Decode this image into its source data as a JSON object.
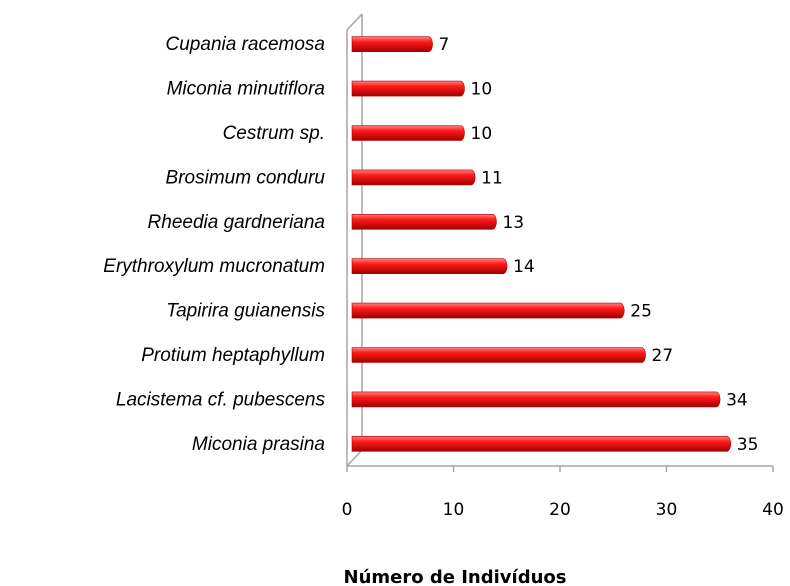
{
  "chart_data": {
    "type": "bar",
    "orientation": "horizontal",
    "x_label": "Número de Indivíduos",
    "categories": [
      "Cupania racemosa",
      "Miconia minutiflora",
      "Cestrum sp.",
      "Brosimum conduru",
      "Rheedia gardneriana",
      "Erythroxylum mucronatum",
      "Tapirira guianensis",
      "Protium heptaphyllum",
      "Lacistema cf. pubescens",
      "Miconia prasina"
    ],
    "values": [
      7,
      10,
      10,
      11,
      13,
      14,
      25,
      27,
      34,
      35
    ],
    "color": "#ff0000",
    "xlim": [
      0,
      40
    ],
    "xticks": [
      0,
      10,
      20,
      30,
      40
    ],
    "grid": false
  }
}
